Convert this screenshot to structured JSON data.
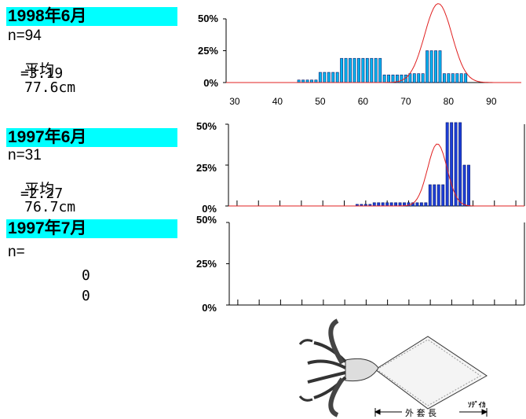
{
  "panels": [
    {
      "header": "1998年6月",
      "n_label": "n=94",
      "mean_label": "平均",
      "mean_value": "77.6cm",
      "sd_label": "=3.19",
      "yticks": [
        "50%",
        "25%",
        "0%"
      ],
      "xticks": [
        "30",
        "40",
        "50",
        "60",
        "70",
        "80",
        "90"
      ]
    },
    {
      "header": "1997年6月",
      "n_label": "n=31",
      "mean_label": "平均",
      "mean_value": "76.7cm",
      "sd_label": "=2.27",
      "yticks": [
        "50%",
        "25%",
        "0%"
      ],
      "xticks": []
    },
    {
      "header": "1997年7月",
      "n_label": "n=",
      "mean_label": "",
      "mean_value": "0",
      "sd_label": "0",
      "yticks": [
        "50%",
        "25%",
        "0%"
      ],
      "xticks": []
    }
  ],
  "figure": {
    "caption_species": "ｿﾃﾞｲｶ",
    "caption_measure": "外 套 長"
  },
  "colors": {
    "header_bg": "#00ffff",
    "bar_1998": "#00b4f0",
    "bar_1997": "#1d3fd8",
    "curve": "#e02020"
  },
  "chart_data": [
    {
      "type": "bar",
      "title": "1998年6月",
      "x": [
        45,
        46,
        47,
        48,
        49,
        50,
        51,
        52,
        53,
        54,
        55,
        56,
        57,
        58,
        59,
        60,
        61,
        62,
        63,
        64,
        65,
        66,
        67,
        68,
        69,
        70,
        71,
        72,
        73,
        74,
        75,
        76,
        77,
        78,
        79,
        80,
        81,
        82,
        83,
        84
      ],
      "values": [
        2,
        2,
        2,
        2,
        2,
        8,
        8,
        8,
        8,
        8,
        19,
        19,
        19,
        19,
        19,
        19,
        19,
        19,
        19,
        19,
        6,
        6,
        6,
        6,
        6,
        6,
        7,
        7,
        7,
        7,
        25,
        25,
        25,
        25,
        7,
        7,
        7,
        7,
        7,
        7
      ],
      "xlim": [
        28,
        97
      ],
      "ylim": [
        0,
        50
      ],
      "curve": {
        "type": "normal",
        "mean": 77.6,
        "sd": 3.19,
        "peak": 62
      }
    },
    {
      "type": "bar",
      "title": "1997年6月",
      "x": [
        58,
        59,
        60,
        61,
        62,
        63,
        64,
        65,
        66,
        67,
        68,
        69,
        70,
        71,
        72,
        73,
        74,
        75,
        76,
        77,
        78,
        79,
        80,
        81,
        82,
        83,
        84
      ],
      "values": [
        1,
        1,
        1,
        1,
        2,
        2,
        2,
        2,
        2,
        2,
        2,
        2,
        2,
        2,
        2,
        2,
        2,
        13,
        13,
        13,
        13,
        51,
        51,
        51,
        51,
        25,
        25
      ],
      "xlim": [
        28,
        97
      ],
      "ylim": [
        0,
        50
      ],
      "curve": {
        "type": "normal",
        "mean": 76.7,
        "sd": 2.27,
        "peak": 38
      }
    },
    {
      "type": "bar",
      "title": "1997年7月",
      "x": [],
      "values": [],
      "xlim": [
        28,
        97
      ],
      "ylim": [
        0,
        50
      ]
    }
  ]
}
